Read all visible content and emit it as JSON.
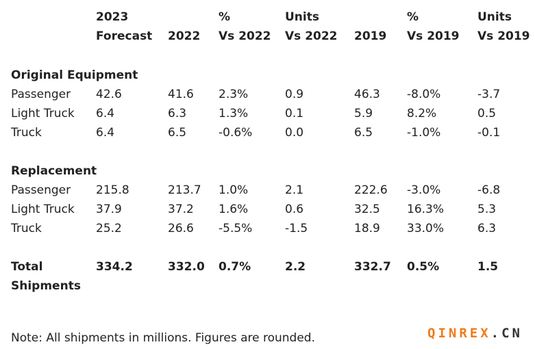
{
  "table": {
    "columns": [
      [
        "2023",
        "Forecast"
      ],
      [
        "2022"
      ],
      [
        "%",
        "Vs 2022"
      ],
      [
        "Units",
        "Vs 2022"
      ],
      [
        "2019"
      ],
      [
        "%",
        "Vs 2019"
      ],
      [
        "Units",
        "Vs 2019"
      ]
    ],
    "sections": [
      {
        "title": "Original Equipment",
        "rows": [
          [
            "Passenger",
            "42.6",
            "41.6",
            "2.3%",
            "0.9",
            "46.3",
            "-8.0%",
            "-3.7"
          ],
          [
            "Light Truck",
            "6.4",
            "6.3",
            "1.3%",
            "0.1",
            "5.9",
            "8.2%",
            "0.5"
          ],
          [
            "Truck",
            "6.4",
            "6.5",
            "-0.6%",
            "0.0",
            "6.5",
            "-1.0%",
            "-0.1"
          ]
        ]
      },
      {
        "title": "Replacement",
        "rows": [
          [
            "Passenger",
            "215.8",
            "213.7",
            "1.0%",
            "2.1",
            "222.6",
            "-3.0%",
            "-6.8"
          ],
          [
            "Light Truck",
            "37.9",
            "37.2",
            "1.6%",
            "0.6",
            "32.5",
            "16.3%",
            "5.3"
          ],
          [
            "Truck",
            "25.2",
            "26.6",
            "-5.5%",
            "-1.5",
            "18.9",
            "33.0%",
            "6.3"
          ]
        ]
      }
    ],
    "total": [
      "Total Shipments",
      "334.2",
      "332.0",
      "0.7%",
      "2.2",
      "332.7",
      "0.5%",
      "1.5"
    ]
  },
  "note": "Note: All shipments in millions. Figures are rounded.",
  "watermark": {
    "brand": "QINREX",
    "suffix": ".CN"
  }
}
